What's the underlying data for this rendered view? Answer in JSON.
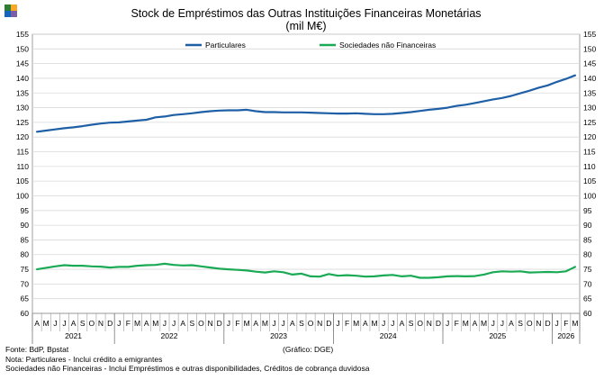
{
  "chart_data": {
    "type": "line",
    "title": "Stock de Empréstimos das Outras Instituições Financeiras Monetárias",
    "subtitle": "(mil M€)",
    "ylim": [
      60,
      155
    ],
    "yticks": [
      60,
      65,
      70,
      75,
      80,
      85,
      90,
      95,
      100,
      105,
      110,
      115,
      120,
      125,
      130,
      135,
      140,
      145,
      150,
      155
    ],
    "grid": true,
    "legend_position": "top",
    "month_labels": [
      "A",
      "M",
      "J",
      "J",
      "A",
      "S",
      "O",
      "N",
      "D",
      "J",
      "F",
      "M",
      "A",
      "M",
      "J",
      "J",
      "A",
      "S",
      "O",
      "N",
      "D",
      "J",
      "F",
      "M",
      "A",
      "M",
      "J",
      "J",
      "A",
      "S",
      "O",
      "N",
      "D",
      "J",
      "F",
      "M",
      "A",
      "M",
      "J",
      "J",
      "A",
      "S",
      "O",
      "N",
      "D",
      "J",
      "F",
      "M",
      "A",
      "M",
      "J",
      "J",
      "A",
      "S",
      "O",
      "N",
      "D",
      "J",
      "F",
      "M"
    ],
    "years": [
      {
        "label": "2021",
        "start": 0,
        "count": 9
      },
      {
        "label": "2022",
        "start": 9,
        "count": 12
      },
      {
        "label": "2023",
        "start": 21,
        "count": 12
      },
      {
        "label": "2024",
        "start": 33,
        "count": 12
      },
      {
        "label": "2025",
        "start": 45,
        "count": 12
      },
      {
        "label": "2026",
        "start": 57,
        "count": 3
      }
    ],
    "series": [
      {
        "name": "Particulares",
        "color": "#1f5fa6",
        "values": [
          121.8,
          122.2,
          122.6,
          123.0,
          123.3,
          123.7,
          124.2,
          124.6,
          124.9,
          125.0,
          125.3,
          125.6,
          125.9,
          126.7,
          127.0,
          127.5,
          127.8,
          128.1,
          128.5,
          128.8,
          129.0,
          129.1,
          129.1,
          129.3,
          128.8,
          128.5,
          128.5,
          128.4,
          128.4,
          128.4,
          128.3,
          128.2,
          128.1,
          128.0,
          128.0,
          128.1,
          127.9,
          127.8,
          127.8,
          127.9,
          128.2,
          128.5,
          128.9,
          129.3,
          129.6,
          130.0,
          130.6,
          131.0,
          131.6,
          132.2,
          132.8,
          133.3,
          134.0,
          134.9,
          135.8,
          136.8,
          137.6,
          138.8,
          139.8,
          141.0
        ]
      },
      {
        "name": "Sociedades não Financeiras",
        "color": "#1aaa55",
        "values": [
          75.0,
          75.5,
          76.0,
          76.4,
          76.2,
          76.2,
          76.0,
          75.9,
          75.6,
          75.8,
          75.8,
          76.2,
          76.4,
          76.5,
          76.9,
          76.5,
          76.3,
          76.4,
          76.0,
          75.6,
          75.2,
          75.0,
          74.8,
          74.6,
          74.2,
          73.9,
          74.3,
          74.0,
          73.2,
          73.5,
          72.6,
          72.5,
          73.4,
          72.8,
          73.0,
          72.8,
          72.5,
          72.6,
          72.9,
          73.1,
          72.6,
          72.8,
          72.1,
          72.1,
          72.3,
          72.6,
          72.7,
          72.6,
          72.7,
          73.2,
          74.0,
          74.3,
          74.2,
          74.3,
          73.9,
          74.0,
          74.1,
          74.0,
          74.3,
          75.8
        ]
      }
    ]
  },
  "notes": {
    "source": "Fonte: BdP, Bpstat",
    "credit": "(Gráfico: DGE)",
    "note1": "Nota: Particulares - Inclui crédito a emigrantes",
    "note2": "Sociedades não Financeiras - Inclui Empréstimos e outras disponibilidades, Créditos de cobrança duvidosa"
  }
}
